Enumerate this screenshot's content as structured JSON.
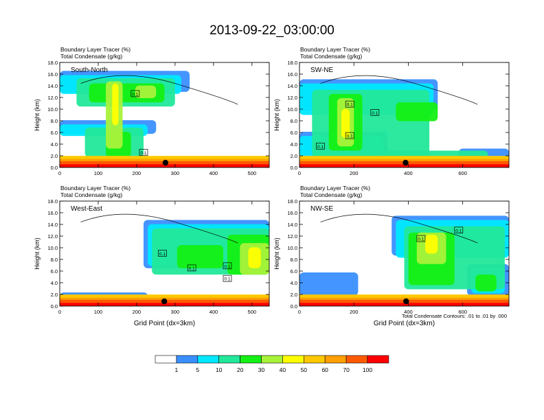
{
  "figure": {
    "title": "2013-09-22_03:00:00",
    "contour_note": "Total Condensate Contours: .01 to .01 by .000"
  },
  "colorbar": {
    "levels": [
      "1",
      "5",
      "10",
      "20",
      "30",
      "40",
      "50",
      "60",
      "70",
      "100"
    ],
    "colors": [
      "#ffffff",
      "#3a8fff",
      "#00e8ff",
      "#22e89a",
      "#14f014",
      "#a8f23a",
      "#ffff00",
      "#ffc800",
      "#ffa000",
      "#ff5a00",
      "#ff0000"
    ]
  },
  "chart_data": [
    {
      "type": "heatmap",
      "panel": "South-North",
      "series_labels": [
        "Boundary Layer Tracer   (%)",
        "Total Condensate   (g/kg)"
      ],
      "ylabel": "Height (km)",
      "xlabel": "",
      "xlim": [
        0,
        545
      ],
      "ylim": [
        0,
        18
      ],
      "xticks": [
        0,
        100,
        200,
        300,
        400,
        500
      ],
      "yticks": [
        "0.0",
        "2.0",
        "4.0",
        "6.0",
        "8.0",
        "10.0",
        "12.0",
        "14.0",
        "16.0",
        "18.0"
      ],
      "contour_labels": [
        "0.1",
        "0.1"
      ],
      "marker_x": 275
    },
    {
      "type": "heatmap",
      "panel": "SW-NE",
      "series_labels": [
        "Boundary Layer Tracer   (%)",
        "Total Condensate   (g/kg)"
      ],
      "ylabel": "Height (km)",
      "xlabel": "",
      "xlim": [
        0,
        770
      ],
      "ylim": [
        0,
        18
      ],
      "xticks": [
        0,
        200,
        400,
        600
      ],
      "yticks": [
        "0.0",
        "2.0",
        "4.0",
        "6.0",
        "8.0",
        "10.0",
        "12.0",
        "14.0",
        "16.0",
        "18.0"
      ],
      "contour_labels": [
        "0.1",
        "0.1",
        "0.1",
        "0.1"
      ],
      "marker_x": 390
    },
    {
      "type": "heatmap",
      "panel": "West-East",
      "series_labels": [
        "Boundary Layer Tracer   (%)",
        "Total Condensate   (g/kg)"
      ],
      "ylabel": "Height (km)",
      "xlabel": "Grid Point (dx=3km)",
      "xlim": [
        0,
        545
      ],
      "ylim": [
        0,
        18
      ],
      "xticks": [
        0,
        100,
        200,
        300,
        400,
        500
      ],
      "yticks": [
        "0.0",
        "2.0",
        "4.0",
        "6.0",
        "8.0",
        "10.0",
        "12.0",
        "14.0",
        "16.0",
        "18.0"
      ],
      "contour_labels": [
        "0.1",
        "0.1",
        "0.1",
        "0.1"
      ],
      "marker_x": 272
    },
    {
      "type": "heatmap",
      "panel": "NW-SE",
      "series_labels": [
        "Boundary Layer Tracer   (%)",
        "Total Condensate   (g/kg)"
      ],
      "ylabel": "Height (km)",
      "xlabel": "Grid Point (dx=3km)",
      "xlim": [
        0,
        770
      ],
      "ylim": [
        0,
        18
      ],
      "xticks": [
        0,
        200,
        400,
        600
      ],
      "yticks": [
        "0.0",
        "2.0",
        "4.0",
        "6.0",
        "8.0",
        "10.0",
        "12.0",
        "14.0",
        "16.0",
        "18.0"
      ],
      "contour_labels": [
        "0.1",
        "0.1"
      ],
      "marker_x": 392
    }
  ]
}
